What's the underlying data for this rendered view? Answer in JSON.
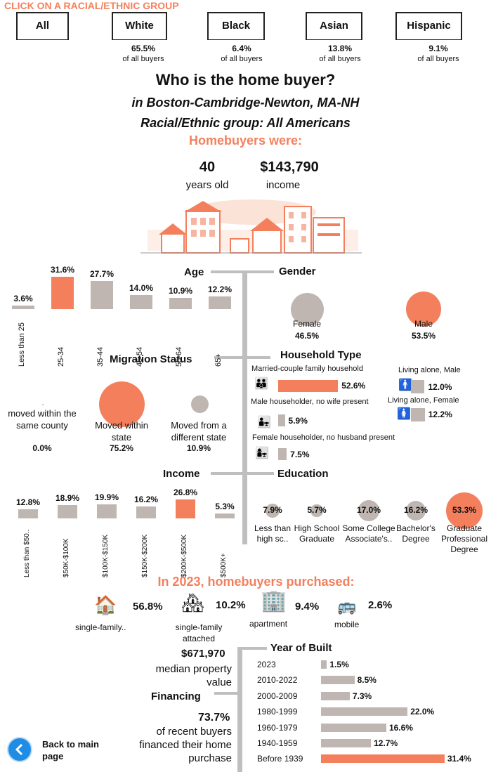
{
  "header": {
    "prompt": "CLICK ON A RACIAL/ETHNIC GROUP"
  },
  "groups": [
    {
      "label": "All",
      "share": "",
      "share_note": ""
    },
    {
      "label": "White",
      "share": "65.5%",
      "share_note": "of all buyers"
    },
    {
      "label": "Black",
      "share": "6.4%",
      "share_note": "of all buyers"
    },
    {
      "label": "Asian",
      "share": "13.8%",
      "share_note": "of all buyers"
    },
    {
      "label": "Hispanic",
      "share": "9.1%",
      "share_note": "of all buyers"
    }
  ],
  "title": "Who is the home buyer?",
  "subtitle": "in Boston-Cambridge-Newton, MA-NH",
  "group_line": "Racial/Ethnic group: All Americans",
  "were": "Homebuyers were:",
  "summary": {
    "age": "40",
    "age_label": "years old",
    "income": "$143,790",
    "income_label": "income"
  },
  "age": {
    "title": "Age",
    "items": [
      {
        "label": "Less than 25",
        "value": "3.6%",
        "num": 3.6
      },
      {
        "label": "25-34",
        "value": "31.6%",
        "num": 31.6
      },
      {
        "label": "35-44",
        "value": "27.7%",
        "num": 27.7
      },
      {
        "label": "45-54",
        "value": "14.0%",
        "num": 14.0
      },
      {
        "label": "55-64",
        "value": "10.9%",
        "num": 10.9
      },
      {
        "label": "65+",
        "value": "12.2%",
        "num": 12.2
      }
    ]
  },
  "gender": {
    "title": "Gender",
    "female_label": "Female",
    "female_value": "46.5%",
    "male_label": "Male",
    "male_value": "53.5%"
  },
  "migration": {
    "title": "Migration Status",
    "items": [
      {
        "label": "moved within the same county",
        "value": "0.0%",
        "num": 0.0
      },
      {
        "label": "Moved within state",
        "value": "75.2%",
        "num": 75.2
      },
      {
        "label": "Moved from a different state",
        "value": "10.9%",
        "num": 10.9
      }
    ]
  },
  "household": {
    "title": "Household Type",
    "married_label": "Married-couple family household",
    "married_value": "52.6%",
    "married_num": 52.6,
    "male_hh_label": "Male householder, no wife present",
    "male_hh_value": "5.9%",
    "male_hh_num": 5.9,
    "female_hh_label": "Female householder, no husband present",
    "female_hh_value": "7.5%",
    "female_hh_num": 7.5,
    "alone_male_label": "Living alone, Male",
    "alone_male_value": "12.0%",
    "alone_male_num": 12.0,
    "alone_female_label": "Living alone, Female",
    "alone_female_value": "12.2%",
    "alone_female_num": 12.2
  },
  "income": {
    "title": "Income",
    "items": [
      {
        "label": "Less than $50..",
        "value": "12.8%",
        "num": 12.8
      },
      {
        "label": "$50K-$100K",
        "value": "18.9%",
        "num": 18.9
      },
      {
        "label": "$100K-$150K",
        "value": "19.9%",
        "num": 19.9
      },
      {
        "label": "$150K-$200K",
        "value": "16.2%",
        "num": 16.2
      },
      {
        "label": "$200K-$500K",
        "value": "26.8%",
        "num": 26.8
      },
      {
        "label": "$500K+",
        "value": "5.3%",
        "num": 5.3
      }
    ]
  },
  "education": {
    "title": "Education",
    "items": [
      {
        "label": "Less than high sc..",
        "value": "7.9%",
        "num": 7.9
      },
      {
        "label": "High School Graduate",
        "value": "5.7%",
        "num": 5.7
      },
      {
        "label": "Some College Associate's..",
        "value": "17.0%",
        "num": 17.0
      },
      {
        "label": "Bachelor's Degree",
        "value": "16.2%",
        "num": 16.2
      },
      {
        "label": "Graduate Professional Degree",
        "value": "53.3%",
        "num": 53.3
      }
    ]
  },
  "purchased": {
    "title": "In 2023, homebuyers purchased:",
    "items": [
      {
        "icon": "house-icon",
        "label": "single-family..",
        "value": "56.8%"
      },
      {
        "icon": "townhouse-icon",
        "label": "single-family attached",
        "value": "10.2%"
      },
      {
        "icon": "apartment-icon",
        "label": "apartment",
        "value": "9.4%"
      },
      {
        "icon": "mobile-home-icon",
        "label": "mobile",
        "value": "2.6%"
      }
    ]
  },
  "property": {
    "value": "$671,970",
    "label": "median property value"
  },
  "financing": {
    "title": "Financing",
    "value": "73.7%",
    "label": "of recent buyers financed their home purchase"
  },
  "year_built": {
    "title": "Year of Built",
    "items": [
      {
        "label": "2023",
        "value": "1.5%",
        "num": 1.5
      },
      {
        "label": "2010-2022",
        "value": "8.5%",
        "num": 8.5
      },
      {
        "label": "2000-2009",
        "value": "7.3%",
        "num": 7.3
      },
      {
        "label": "1980-1999",
        "value": "22.0%",
        "num": 22.0
      },
      {
        "label": "1960-1979",
        "value": "16.6%",
        "num": 16.6
      },
      {
        "label": "1940-1959",
        "value": "12.7%",
        "num": 12.7
      },
      {
        "label": "Before 1939",
        "value": "31.4%",
        "num": 31.4
      }
    ]
  },
  "back": {
    "label": "Back to main page"
  },
  "colors": {
    "accent": "#f47f5c",
    "bar": "#bfb6b1",
    "line": "#bfbfbf"
  }
}
